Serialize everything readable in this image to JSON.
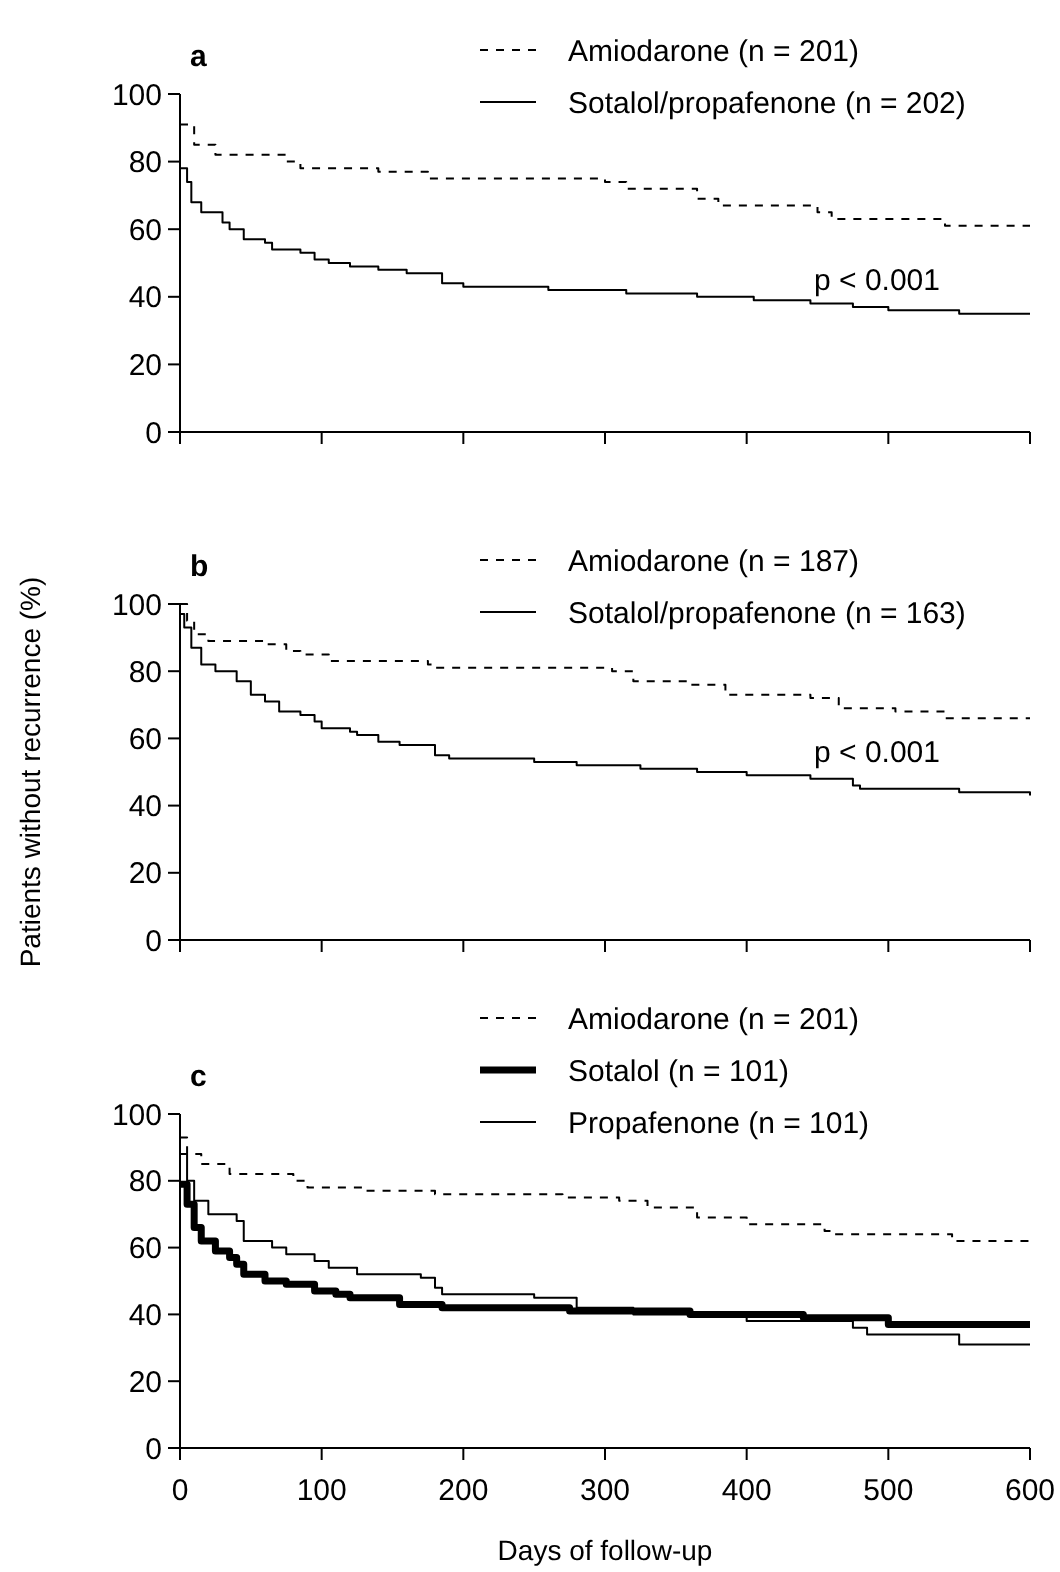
{
  "chart_data": [
    {
      "type": "step",
      "title": "a",
      "xlim": [
        0,
        600
      ],
      "ylim": [
        0,
        100
      ],
      "xticks": [
        {
          "value": 0,
          "label": null
        },
        {
          "value": 100,
          "label": null
        },
        {
          "value": 200,
          "label": null
        },
        {
          "value": 300,
          "label": null
        },
        {
          "value": 400,
          "label": null
        },
        {
          "value": 500,
          "label": null
        },
        {
          "value": 600,
          "label": null
        }
      ],
      "yticks": [
        0,
        20,
        40,
        60,
        80,
        100
      ],
      "tick_labels": "y",
      "grid": false,
      "legend": "top right",
      "annotations": [
        "p < 0.001"
      ],
      "series": [
        {
          "name": "Amiodarone (n = 201)",
          "color": "#000000",
          "line_style": "dashed",
          "x": [
            0,
            10,
            25,
            75,
            85,
            140,
            175,
            300,
            315,
            365,
            380,
            450,
            460,
            540,
            600
          ],
          "values": [
            91,
            85,
            82,
            80,
            78,
            77,
            75,
            74,
            72,
            69,
            67,
            65,
            63,
            61,
            61
          ]
        },
        {
          "name": "Sotalol/propafenone (n = 202)",
          "color": "#000000",
          "line_style": "solid",
          "x": [
            0,
            5,
            8,
            15,
            30,
            35,
            45,
            60,
            65,
            85,
            95,
            105,
            120,
            140,
            160,
            185,
            200,
            260,
            315,
            365,
            405,
            445,
            475,
            500,
            550,
            600
          ],
          "values": [
            78,
            74,
            68,
            65,
            62,
            60,
            57,
            56,
            54,
            53,
            51,
            50,
            49,
            48,
            47,
            44,
            43,
            42,
            41,
            40,
            39,
            38,
            37,
            36,
            35,
            35
          ]
        }
      ]
    },
    {
      "type": "step",
      "title": "b",
      "ylabel": "Patients without recurrence (%)",
      "xlim": [
        0,
        600
      ],
      "ylim": [
        0,
        100
      ],
      "xticks": [
        {
          "value": 0,
          "label": null
        },
        {
          "value": 100,
          "label": null
        },
        {
          "value": 200,
          "label": null
        },
        {
          "value": 300,
          "label": null
        },
        {
          "value": 400,
          "label": null
        },
        {
          "value": 500,
          "label": null
        },
        {
          "value": 600,
          "label": null
        }
      ],
      "yticks": [
        0,
        20,
        40,
        60,
        80,
        100
      ],
      "tick_labels": "y",
      "grid": false,
      "legend": "top right",
      "annotations": [
        "p < 0.001"
      ],
      "series": [
        {
          "name": "Amiodarone (n = 187)",
          "color": "#000000",
          "line_style": "dashed",
          "x": [
            0,
            5,
            10,
            20,
            60,
            75,
            85,
            105,
            175,
            180,
            305,
            320,
            360,
            385,
            445,
            465,
            505,
            540,
            600
          ],
          "values": [
            100,
            95,
            91,
            89,
            88,
            86,
            85,
            83,
            82,
            81,
            80,
            77,
            76,
            73,
            72,
            69,
            68,
            66,
            66
          ]
        },
        {
          "name": "Sotalol/propafenone (n = 163)",
          "color": "#000000",
          "line_style": "solid",
          "x": [
            0,
            3,
            8,
            15,
            25,
            40,
            50,
            60,
            70,
            85,
            95,
            100,
            120,
            125,
            140,
            155,
            180,
            190,
            250,
            280,
            325,
            365,
            400,
            445,
            475,
            480,
            550,
            600
          ],
          "values": [
            97,
            93,
            87,
            82,
            80,
            77,
            73,
            71,
            68,
            67,
            65,
            63,
            62,
            61,
            59,
            58,
            55,
            54,
            53,
            52,
            51,
            50,
            49,
            48,
            46,
            45,
            44,
            43
          ]
        }
      ]
    },
    {
      "type": "step",
      "title": "c",
      "xlabel": "Days of follow-up",
      "xlim": [
        0,
        600
      ],
      "ylim": [
        0,
        100
      ],
      "xticks": [
        0,
        100,
        200,
        300,
        400,
        500,
        600
      ],
      "yticks": [
        0,
        20,
        40,
        60,
        80,
        100
      ],
      "grid": false,
      "legend": "top right",
      "series": [
        {
          "name": "Amiodarone (n = 201)",
          "color": "#000000",
          "line_style": "dashed",
          "x": [
            0,
            5,
            15,
            35,
            80,
            90,
            130,
            180,
            270,
            310,
            330,
            365,
            400,
            455,
            460,
            545,
            600
          ],
          "values": [
            93,
            88,
            85,
            82,
            80,
            78,
            77,
            76,
            75,
            74,
            72,
            69,
            67,
            65,
            64,
            62,
            62
          ]
        },
        {
          "name": "Sotalol (n = 101)",
          "color": "#000000",
          "line_style": "solid",
          "x": [
            0,
            5,
            10,
            15,
            25,
            35,
            40,
            45,
            60,
            75,
            95,
            110,
            120,
            155,
            185,
            275,
            360,
            440,
            500,
            600
          ],
          "values": [
            79,
            73,
            66,
            62,
            59,
            57,
            55,
            52,
            50,
            49,
            47,
            46,
            45,
            43,
            42,
            41,
            40,
            39,
            37,
            37
          ]
        },
        {
          "name": "Propafenone (n = 101)",
          "color": "#000000",
          "line_style": "solid",
          "x": [
            0,
            5,
            10,
            20,
            40,
            45,
            65,
            75,
            95,
            105,
            125,
            170,
            180,
            185,
            250,
            280,
            320,
            400,
            475,
            485,
            550,
            600
          ],
          "values": [
            88,
            80,
            74,
            70,
            68,
            62,
            60,
            58,
            56,
            54,
            52,
            51,
            48,
            46,
            45,
            42,
            40,
            38,
            36,
            34,
            31,
            31
          ]
        }
      ]
    }
  ]
}
